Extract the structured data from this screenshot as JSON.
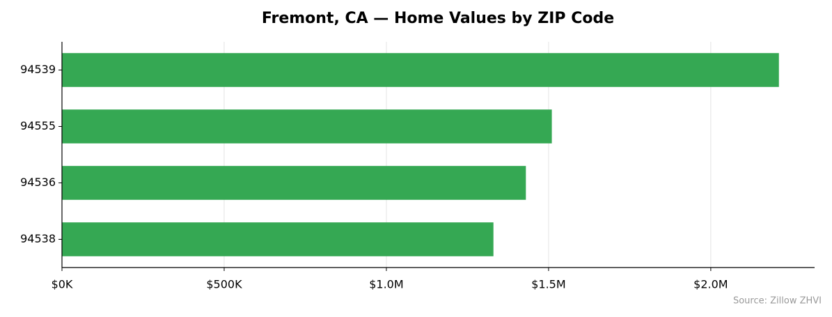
{
  "chart_data": {
    "type": "barh",
    "title": "Fremont, CA — Home Values by ZIP Code",
    "categories": [
      "94539",
      "94555",
      "94536",
      "94538"
    ],
    "values": [
      2210000,
      1510000,
      1430000,
      1330000
    ],
    "color": "#35a853",
    "xlim": [
      0,
      2320000
    ],
    "xticks": [
      {
        "value": 0,
        "label": "$0K"
      },
      {
        "value": 500000,
        "label": "$500K"
      },
      {
        "value": 1000000,
        "label": "$1.0M"
      },
      {
        "value": 1500000,
        "label": "$1.5M"
      },
      {
        "value": 2000000,
        "label": "$2.0M"
      }
    ],
    "grid": true,
    "annotation": "Source: Zillow ZHVI"
  }
}
